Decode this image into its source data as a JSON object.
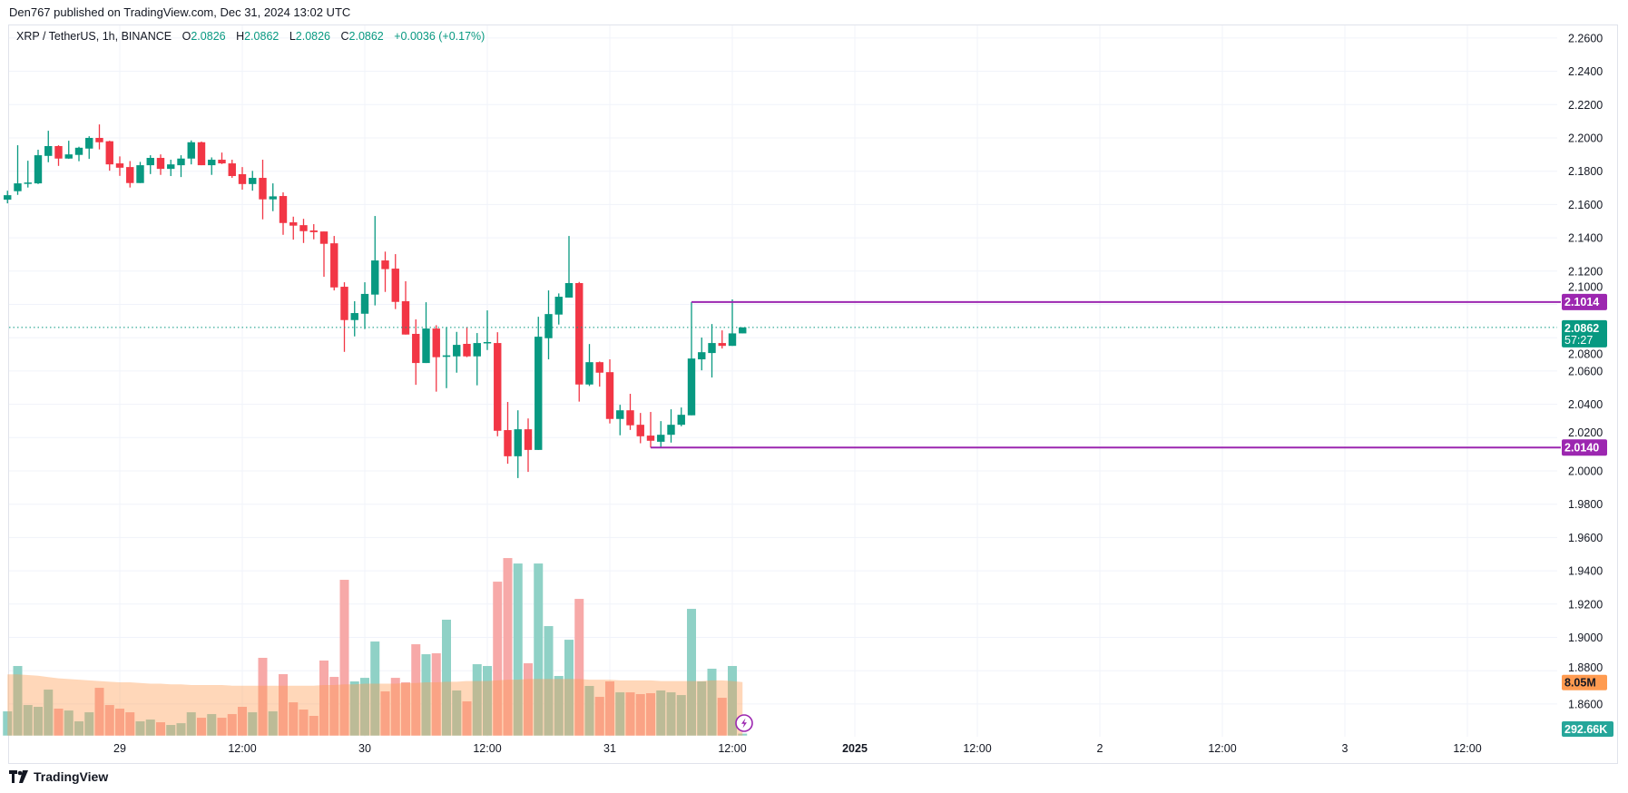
{
  "header": {
    "published": "Den767 published on TradingView.com, Dec 31, 2024 13:02 UTC"
  },
  "legend": {
    "symbol": "XRP / TetherUS, 1h, BINANCE",
    "o_label": "O",
    "o_value": "2.0826",
    "h_label": "H",
    "h_value": "2.0862",
    "l_label": "L",
    "l_value": "2.0826",
    "c_label": "C",
    "c_value": "2.0862",
    "change": "+0.0036 (+0.17%)"
  },
  "price_labels": {
    "resistance": "2.1014",
    "current": "2.0862",
    "countdown": "57:27",
    "support": "2.0140",
    "volume_ma": "8.05M",
    "volume_current": "292.66K"
  },
  "footer": {
    "brand": "TradingView"
  },
  "colors": {
    "up": "#089981",
    "down": "#F23645",
    "line": "#9C27B0",
    "vol_up": "#8fd1c6",
    "vol_down": "#f7a9a8",
    "vol_ma": "#ff9b50",
    "grid": "#f0f3fa"
  },
  "icons": {
    "logo": "tradingview-logo-icon",
    "lightning": "lightning-icon"
  },
  "chart_data": {
    "type": "candlestick",
    "title": "XRP / TetherUS, 1h, BINANCE",
    "interval": "1h",
    "ylim": [
      1.85,
      2.27
    ],
    "grid": true,
    "y_ticks": [
      "2.2600",
      "2.2400",
      "2.2200",
      "2.2000",
      "2.1800",
      "2.1600",
      "2.1400",
      "2.1200",
      "2.1000",
      "2.0800",
      "2.0600",
      "2.0400",
      "2.0200",
      "2.0000",
      "1.9800",
      "1.9600",
      "1.9400",
      "1.9200",
      "1.9000",
      "1.8800",
      "1.8600"
    ],
    "x_ticks": [
      "29",
      "12:00",
      "30",
      "12:00",
      "31",
      "12:00",
      "2025",
      "12:00",
      "2",
      "12:00",
      "3",
      "12:00"
    ],
    "x_tick_hours_from_first_candle": [
      11,
      23,
      35,
      47,
      59,
      71,
      83,
      95,
      107,
      119,
      131,
      143
    ],
    "first_candle": "Dec 28 13:00",
    "ohlc_fields": [
      "open",
      "high",
      "low",
      "close"
    ],
    "candles": [
      [
        2.1629,
        2.1683,
        2.1607,
        2.1656
      ],
      [
        2.168,
        2.1956,
        2.1658,
        2.1727
      ],
      [
        2.1725,
        2.1863,
        2.1702,
        2.1732
      ],
      [
        2.1727,
        2.1929,
        2.1723,
        2.1896
      ],
      [
        2.1892,
        2.2043,
        2.1854,
        2.1951
      ],
      [
        2.1951,
        2.1956,
        2.1832,
        2.1876
      ],
      [
        2.1876,
        2.1983,
        2.1874,
        2.1901
      ],
      [
        2.1898,
        2.1947,
        2.186,
        2.1941
      ],
      [
        2.1936,
        2.201,
        2.1874,
        2.2
      ],
      [
        2.2,
        2.2081,
        2.1931,
        2.1974
      ],
      [
        2.198,
        2.1983,
        2.1803,
        2.1841
      ],
      [
        2.1847,
        2.1889,
        2.1772,
        2.1821
      ],
      [
        2.1825,
        2.1861,
        2.1702,
        2.1729
      ],
      [
        2.1729,
        2.1856,
        2.1729,
        2.1836
      ],
      [
        2.1836,
        2.1896,
        2.1783,
        2.188
      ],
      [
        2.188,
        2.1901,
        2.1778,
        2.1814
      ],
      [
        2.1814,
        2.1869,
        2.1771,
        2.1841
      ],
      [
        2.1836,
        2.1896,
        2.1765,
        2.1876
      ],
      [
        2.1876,
        2.1985,
        2.1841,
        2.1974
      ],
      [
        2.1974,
        2.1978,
        2.1836,
        2.1836
      ],
      [
        2.1836,
        2.1883,
        2.1778,
        2.1869
      ],
      [
        2.1869,
        2.1912,
        2.1843,
        2.1847
      ],
      [
        2.1847,
        2.1869,
        2.176,
        2.1771
      ],
      [
        2.1782,
        2.1825,
        2.1689,
        2.1723
      ],
      [
        2.1723,
        2.1802,
        2.1683,
        2.176
      ],
      [
        2.176,
        2.1869,
        2.1511,
        2.1631
      ],
      [
        2.1631,
        2.1727,
        2.156,
        2.1649
      ],
      [
        2.1651,
        2.1673,
        2.1418,
        2.1489
      ],
      [
        2.1493,
        2.1527,
        2.1389,
        2.1473
      ],
      [
        2.1476,
        2.1514,
        2.1369,
        2.144
      ],
      [
        2.1444,
        2.1482,
        2.1391,
        2.1434
      ],
      [
        2.1438,
        2.1438,
        2.1166,
        2.1364
      ],
      [
        2.1367,
        2.1411,
        2.1084,
        2.1102
      ],
      [
        2.1106,
        2.1133,
        2.0715,
        2.0906
      ],
      [
        2.0906,
        2.1019,
        2.0808,
        2.0948
      ],
      [
        2.0944,
        2.1133,
        2.0852,
        2.1063
      ],
      [
        2.1059,
        2.1531,
        2.0994,
        2.1264
      ],
      [
        2.1264,
        2.1317,
        2.1075,
        2.1212
      ],
      [
        2.1215,
        2.1302,
        2.0972,
        2.1015
      ],
      [
        2.1019,
        2.1139,
        2.0819,
        2.0819
      ],
      [
        2.0823,
        2.091,
        2.0517,
        2.0648
      ],
      [
        2.0648,
        2.1013,
        2.0648,
        2.0855
      ],
      [
        2.0855,
        2.0875,
        2.0476,
        2.0683
      ],
      [
        2.0685,
        2.0864,
        2.0497,
        2.0694
      ],
      [
        2.0688,
        2.0835,
        2.059,
        2.0757
      ],
      [
        2.0763,
        2.0864,
        2.0683,
        2.0688
      ],
      [
        2.0688,
        2.0828,
        2.0514,
        2.0768
      ],
      [
        2.077,
        2.0964,
        2.0726,
        2.0774
      ],
      [
        2.0768,
        2.0833,
        2.0208,
        2.0241
      ],
      [
        2.0245,
        2.0414,
        2.0043,
        2.0088
      ],
      [
        2.0088,
        2.0364,
        1.9957,
        2.025
      ],
      [
        2.025,
        2.0315,
        1.9994,
        2.0126
      ],
      [
        2.0126,
        2.0926,
        2.0126,
        2.0806
      ],
      [
        2.0797,
        2.1084,
        2.067,
        2.0942
      ],
      [
        2.0939,
        2.1066,
        2.0879,
        2.1046
      ],
      [
        2.1041,
        2.1411,
        2.1041,
        2.1128
      ],
      [
        2.1128,
        2.1135,
        2.0416,
        2.0519
      ],
      [
        2.0519,
        2.0762,
        2.051,
        2.0653
      ],
      [
        2.0653,
        2.0657,
        2.0506,
        2.059
      ],
      [
        2.0593,
        2.067,
        2.0285,
        2.0312
      ],
      [
        2.0312,
        2.0397,
        2.0214,
        2.0364
      ],
      [
        2.0364,
        2.0463,
        2.0246,
        2.0274
      ],
      [
        2.0277,
        2.0348,
        2.0166,
        2.0208
      ],
      [
        2.0212,
        2.0354,
        2.014,
        2.0181
      ],
      [
        2.0175,
        2.0299,
        2.0142,
        2.0217
      ],
      [
        2.0217,
        2.037,
        2.017,
        2.0277
      ],
      [
        2.0277,
        2.0381,
        2.0268,
        2.0337
      ],
      [
        2.0334,
        2.1014,
        2.0334,
        2.0675
      ],
      [
        2.067,
        2.0801,
        2.0604,
        2.0713
      ],
      [
        2.0708,
        2.0882,
        2.0561,
        2.0768
      ],
      [
        2.0768,
        2.0844,
        2.0735,
        2.0751
      ],
      [
        2.0751,
        2.103,
        2.0751,
        2.0826
      ],
      [
        2.0826,
        2.0862,
        2.0826,
        2.0862
      ]
    ],
    "volume_unit": "M",
    "volumes": [
      3.64,
      10.46,
      4.59,
      4.32,
      6.91,
      4.05,
      3.77,
      2.14,
      3.5,
      7.18,
      4.59,
      4.05,
      3.5,
      2.14,
      2.41,
      2.0,
      1.59,
      1.86,
      3.5,
      2.68,
      3.23,
      2.68,
      3.23,
      4.32,
      3.5,
      11.69,
      3.64,
      9.23,
      5.0,
      3.91,
      2.96,
      11.28,
      8.82,
      23.42,
      8.14,
      8.68,
      14.14,
      6.64,
      8.68,
      8.0,
      13.73,
      12.23,
      12.37,
      17.42,
      6.78,
      5.14,
      10.73,
      10.46,
      23.14,
      26.69,
      25.87,
      10.87,
      25.87,
      16.46,
      8.96,
      14.41,
      20.55,
      7.46,
      5.82,
      8.14,
      6.5,
      6.5,
      6.23,
      6.37,
      6.78,
      6.5,
      6.09,
      19.05,
      8.14,
      10.05,
      5.68,
      10.46,
      0.29
    ],
    "volume_ma": [
      9.2,
      9.2,
      9.1,
      9.0,
      8.8,
      8.6,
      8.5,
      8.4,
      8.3,
      8.2,
      8.1,
      8.0,
      8.0,
      7.9,
      7.8,
      7.8,
      7.7,
      7.7,
      7.6,
      7.6,
      7.6,
      7.6,
      7.5,
      7.5,
      7.5,
      7.5,
      7.5,
      7.5,
      7.5,
      7.5,
      7.5,
      7.6,
      7.6,
      7.7,
      7.7,
      7.8,
      7.8,
      7.8,
      7.8,
      7.9,
      7.9,
      8.0,
      8.0,
      8.1,
      8.1,
      8.2,
      8.2,
      8.2,
      8.3,
      8.4,
      8.4,
      8.5,
      8.5,
      8.5,
      8.5,
      8.5,
      8.5,
      8.4,
      8.4,
      8.4,
      8.3,
      8.3,
      8.3,
      8.3,
      8.2,
      8.2,
      8.2,
      8.2,
      8.2,
      8.3,
      8.3,
      8.2,
      8.05
    ],
    "horizontal_lines": [
      {
        "name": "resistance",
        "price": 2.1014,
        "from_candle": 67
      },
      {
        "name": "support",
        "price": 2.014,
        "from_candle": 63
      }
    ],
    "last_price": 2.0862
  }
}
